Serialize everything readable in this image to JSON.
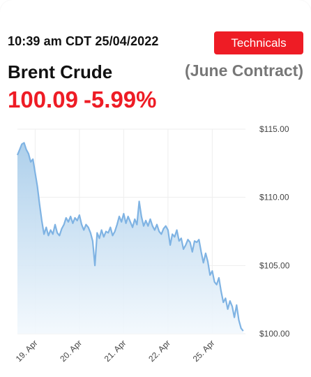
{
  "header": {
    "timestamp": "10:39 am CDT 25/04/2022",
    "technicals_label": "Technicals",
    "instrument": "Brent Crude",
    "contract": "(June Contract)",
    "price": "100.09",
    "change": "-5.99%"
  },
  "colors": {
    "accent_red": "#ee1c25",
    "line": "#7fb3e3",
    "area_top": "#a9cdea",
    "area_bottom": "#f2f8fd",
    "grid": "#eeeeee",
    "muted_text": "#777777"
  },
  "chart_data": {
    "type": "area",
    "title": "",
    "xlabel": "",
    "ylabel": "",
    "ylim": [
      100,
      115
    ],
    "yticks": [
      100,
      105,
      110,
      115
    ],
    "ytick_labels": [
      "$100.00",
      "$105.00",
      "$110.00",
      "$115.00"
    ],
    "xtick_labels": [
      "19. Apr",
      "20. Apr",
      "21. Apr",
      "22. Apr",
      "25. Apr"
    ],
    "xtick_positions": [
      0.4,
      1.4,
      2.4,
      3.4,
      4.4
    ],
    "xlim": [
      0,
      5.15
    ],
    "grid": true,
    "series": [
      {
        "name": "",
        "x": [
          0,
          0.05,
          0.1,
          0.15,
          0.2,
          0.25,
          0.3,
          0.35,
          0.4,
          0.45,
          0.5,
          0.55,
          0.6,
          0.65,
          0.7,
          0.75,
          0.8,
          0.85,
          0.9,
          0.95,
          1.0,
          1.05,
          1.1,
          1.15,
          1.2,
          1.25,
          1.3,
          1.35,
          1.4,
          1.45,
          1.5,
          1.55,
          1.6,
          1.65,
          1.7,
          1.75,
          1.8,
          1.85,
          1.9,
          1.95,
          2.0,
          2.05,
          2.1,
          2.15,
          2.2,
          2.25,
          2.3,
          2.35,
          2.4,
          2.45,
          2.5,
          2.55,
          2.6,
          2.65,
          2.7,
          2.75,
          2.8,
          2.85,
          2.9,
          2.95,
          3.0,
          3.05,
          3.1,
          3.15,
          3.2,
          3.25,
          3.3,
          3.35,
          3.4,
          3.45,
          3.5,
          3.55,
          3.6,
          3.65,
          3.7,
          3.75,
          3.8,
          3.85,
          3.9,
          3.95,
          4.0,
          4.05,
          4.1,
          4.15,
          4.2,
          4.25,
          4.3,
          4.35,
          4.4,
          4.45,
          4.5,
          4.55,
          4.6,
          4.65,
          4.7,
          4.75,
          4.8,
          4.85,
          4.9,
          4.95,
          5.0,
          5.05,
          5.1
        ],
        "values": [
          113.1,
          113.5,
          113.9,
          114.0,
          113.5,
          113.2,
          112.6,
          112.8,
          111.8,
          110.8,
          109.5,
          108.3,
          107.3,
          107.8,
          107.2,
          107.6,
          107.3,
          108.0,
          107.4,
          107.2,
          107.7,
          108.0,
          108.5,
          108.2,
          108.6,
          108.1,
          108.5,
          108.3,
          108.7,
          108.0,
          107.6,
          108.0,
          107.8,
          107.4,
          106.8,
          105.0,
          107.4,
          107.0,
          107.6,
          107.1,
          107.5,
          107.4,
          107.8,
          107.2,
          107.5,
          108.0,
          108.6,
          108.2,
          108.8,
          108.1,
          108.6,
          108.2,
          107.8,
          108.4,
          108.0,
          109.7,
          108.6,
          107.9,
          108.3,
          107.9,
          108.4,
          107.9,
          107.6,
          108.0,
          107.5,
          107.3,
          107.7,
          107.9,
          107.6,
          106.5,
          107.3,
          107.1,
          107.6,
          106.8,
          107.0,
          106.2,
          106.5,
          106.9,
          106.7,
          106.0,
          106.8,
          106.7,
          106.9,
          106.0,
          105.2,
          105.9,
          105.3,
          104.3,
          104.6,
          103.8,
          103.6,
          104.1,
          103.1,
          102.3,
          102.6,
          101.8,
          102.4,
          102.0,
          101.2,
          102.1,
          101.0,
          100.4,
          100.2
        ]
      }
    ]
  }
}
